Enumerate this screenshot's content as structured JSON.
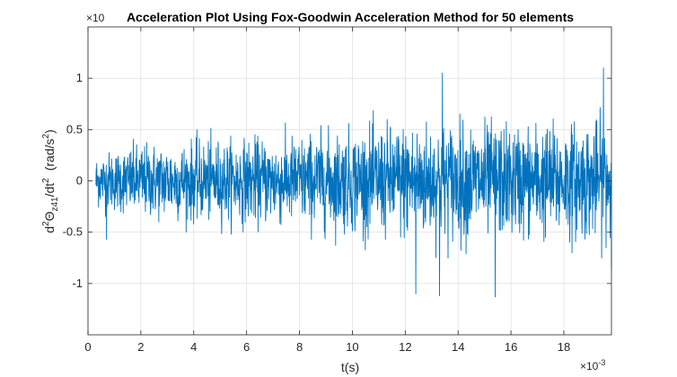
{
  "chart_data": {
    "type": "line",
    "title": "Acceleration Plot Using Fox-Goodwin Acceleration Method for 50 elements",
    "xlabel": "t(s)",
    "ylabel": "d²Θz41/dt²  (rad/s²)",
    "ylabel_parts": {
      "d": "d",
      "sup1": "2",
      "theta": "Θ",
      "sub": "z41",
      "slash": "/dt",
      "sup2": "2",
      "units_open": "(rad/s",
      "sup3": "2",
      "units_close": ")"
    },
    "x_multiplier": "×10",
    "x_exponent": "-3",
    "y_multiplier": "×10",
    "y_exponent": "",
    "xlim": [
      0,
      0.0198
    ],
    "ylim": [
      -1.5,
      1.5
    ],
    "xticks": [
      0,
      0.002,
      0.004,
      0.006,
      0.008,
      0.01,
      0.012,
      0.014,
      0.016,
      0.018
    ],
    "xtick_labels": [
      "0",
      "2",
      "4",
      "6",
      "8",
      "10",
      "12",
      "14",
      "16",
      "18"
    ],
    "yticks": [
      -1,
      -0.5,
      0,
      0.5,
      1
    ],
    "ytick_labels": [
      "-1",
      "-0.5",
      "0",
      "0.5",
      "1"
    ],
    "grid": true,
    "line_color": "#0072BD",
    "series": [
      {
        "x_start": 0.0003,
        "x_end": 0.0198,
        "envelope_x": [
          0.0003,
          0.002,
          0.004,
          0.006,
          0.008,
          0.01,
          0.012,
          0.014,
          0.016,
          0.018,
          0.0198
        ],
        "envelope_amplitude": [
          0.32,
          0.45,
          0.48,
          0.5,
          0.55,
          0.62,
          0.7,
          0.72,
          0.68,
          0.7,
          0.72
        ],
        "peaks": [
          {
            "x": 0.0195,
            "y": 1.1
          },
          {
            "x": 0.0134,
            "y": 1.05
          },
          {
            "x": 0.0133,
            "y": -1.12
          },
          {
            "x": 0.0154,
            "y": -1.13
          },
          {
            "x": 0.0124,
            "y": -1.1
          },
          {
            "x": 0.0198,
            "y": -0.86
          },
          {
            "x": 0.0007,
            "y": -0.57
          }
        ]
      }
    ]
  }
}
